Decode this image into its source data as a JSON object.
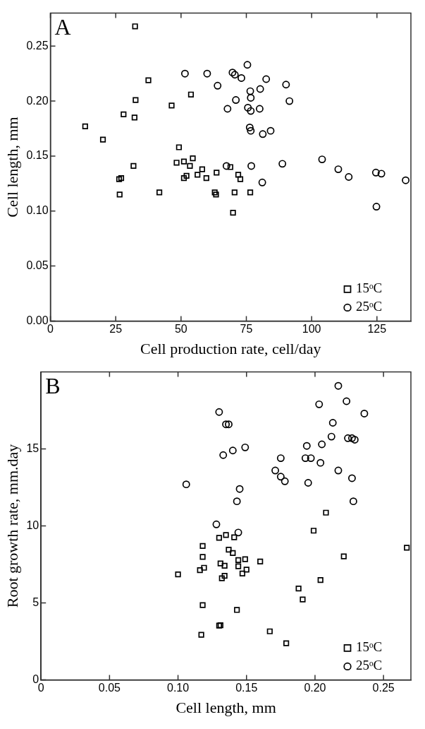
{
  "chart_data": [
    {
      "type": "scatter",
      "title": "A",
      "xlabel": "Cell production rate, cell/day",
      "ylabel": "Cell length, mm",
      "xlim": [
        0,
        138
      ],
      "xticks": [
        0,
        25,
        50,
        75,
        100,
        125
      ],
      "ylim": [
        0,
        0.28
      ],
      "yticks": [
        {
          "value": 0,
          "label": "0.00"
        },
        0.05,
        {
          "value": 0.1,
          "label": "0.10"
        },
        0.15,
        {
          "value": 0.2,
          "label": "0.20"
        },
        0.25
      ],
      "grid": false,
      "legend": "bottom right",
      "series": [
        {
          "name": "15ᵒC",
          "color": "#000000",
          "marker": "square",
          "x": [
            32.4,
            13.3,
            20.1,
            37.5,
            32.6,
            28.0,
            32.2,
            46.4,
            53.8,
            49.2,
            48.3,
            51.1,
            54.5,
            53.4,
            52.1,
            51.1,
            31.8,
            26.3,
            27.1,
            26.5,
            41.7,
            56.3,
            58.1,
            59.7,
            63.6,
            62.9,
            63.4,
            68.9,
            71.9,
            72.7,
            70.5,
            76.5,
            69.9
          ],
          "values": [
            0.268,
            0.177,
            0.165,
            0.219,
            0.201,
            0.188,
            0.185,
            0.196,
            0.206,
            0.158,
            0.144,
            0.145,
            0.148,
            0.141,
            0.132,
            0.13,
            0.141,
            0.129,
            0.13,
            0.115,
            0.117,
            0.133,
            0.138,
            0.13,
            0.135,
            0.117,
            0.115,
            0.14,
            0.133,
            0.129,
            0.117,
            0.117,
            0.0985
          ]
        },
        {
          "name": "25ᵒC",
          "color": "#000000",
          "marker": "circle",
          "x": [
            51.5,
            60.0,
            64.0,
            69.7,
            70.6,
            73.1,
            75.4,
            76.5,
            80.3,
            82.6,
            90.2,
            91.5,
            67.8,
            71.0,
            75.6,
            76.7,
            76.7,
            80.1,
            76.3,
            76.7,
            81.3,
            84.3,
            67.4,
            76.9,
            81.1,
            88.8,
            104.0,
            110.2,
            114.2,
            124.6,
            126.7,
            124.8,
            136.0
          ],
          "values": [
            0.225,
            0.225,
            0.214,
            0.226,
            0.224,
            0.221,
            0.233,
            0.209,
            0.211,
            0.22,
            0.215,
            0.2,
            0.193,
            0.201,
            0.194,
            0.203,
            0.191,
            0.193,
            0.176,
            0.173,
            0.17,
            0.173,
            0.141,
            0.141,
            0.126,
            0.143,
            0.147,
            0.138,
            0.131,
            0.135,
            0.134,
            0.104,
            0.128
          ]
        }
      ]
    },
    {
      "type": "scatter",
      "title": "B",
      "xlabel": "Cell length, mm",
      "ylabel": "Root growth rate, mm.day",
      "xlim": [
        0,
        0.27
      ],
      "xticks": [
        0,
        0.05,
        {
          "value": 0.1,
          "label": "0.10"
        },
        0.15,
        {
          "value": 0.2,
          "label": "0.20"
        },
        0.25
      ],
      "ylim": [
        0,
        20
      ],
      "yticks": [
        0,
        5,
        10,
        15
      ],
      "grid": false,
      "legend": "bottom right",
      "series": [
        {
          "name": "15ᵒC",
          "color": "#000000",
          "marker": "square",
          "x": [
            0.1,
            0.118,
            0.118,
            0.116,
            0.119,
            0.118,
            0.117,
            0.13,
            0.135,
            0.141,
            0.137,
            0.131,
            0.134,
            0.132,
            0.134,
            0.14,
            0.144,
            0.149,
            0.144,
            0.147,
            0.15,
            0.16,
            0.13,
            0.131,
            0.143,
            0.167,
            0.179,
            0.188,
            0.191,
            0.199,
            0.204,
            0.208,
            0.221,
            0.267
          ],
          "values": [
            6.85,
            8.7,
            7.99,
            7.13,
            7.28,
            4.85,
            2.93,
            9.23,
            9.41,
            9.26,
            8.46,
            7.56,
            7.41,
            6.6,
            6.76,
            8.24,
            7.78,
            7.84,
            7.38,
            6.91,
            7.16,
            7.69,
            3.52,
            3.55,
            4.54,
            3.15,
            2.38,
            5.93,
            5.22,
            9.69,
            6.48,
            10.86,
            8.02,
            8.58
          ]
        },
        {
          "name": "25ᵒC",
          "color": "#000000",
          "marker": "circle",
          "x": [
            0.13,
            0.135,
            0.137,
            0.133,
            0.14,
            0.149,
            0.106,
            0.145,
            0.143,
            0.128,
            0.144,
            0.171,
            0.175,
            0.175,
            0.178,
            0.194,
            0.193,
            0.197,
            0.195,
            0.204,
            0.205,
            0.203,
            0.213,
            0.212,
            0.223,
            0.217,
            0.224,
            0.227,
            0.229,
            0.217,
            0.227,
            0.228,
            0.236
          ],
          "values": [
            17.4,
            16.6,
            16.6,
            14.6,
            14.9,
            15.1,
            12.7,
            12.4,
            11.6,
            10.1,
            9.57,
            13.6,
            14.4,
            13.2,
            12.9,
            15.2,
            14.4,
            14.4,
            12.8,
            14.1,
            15.3,
            17.9,
            16.7,
            15.8,
            18.1,
            19.1,
            15.7,
            15.7,
            15.6,
            13.6,
            13.1,
            11.6,
            17.3
          ]
        }
      ]
    }
  ]
}
